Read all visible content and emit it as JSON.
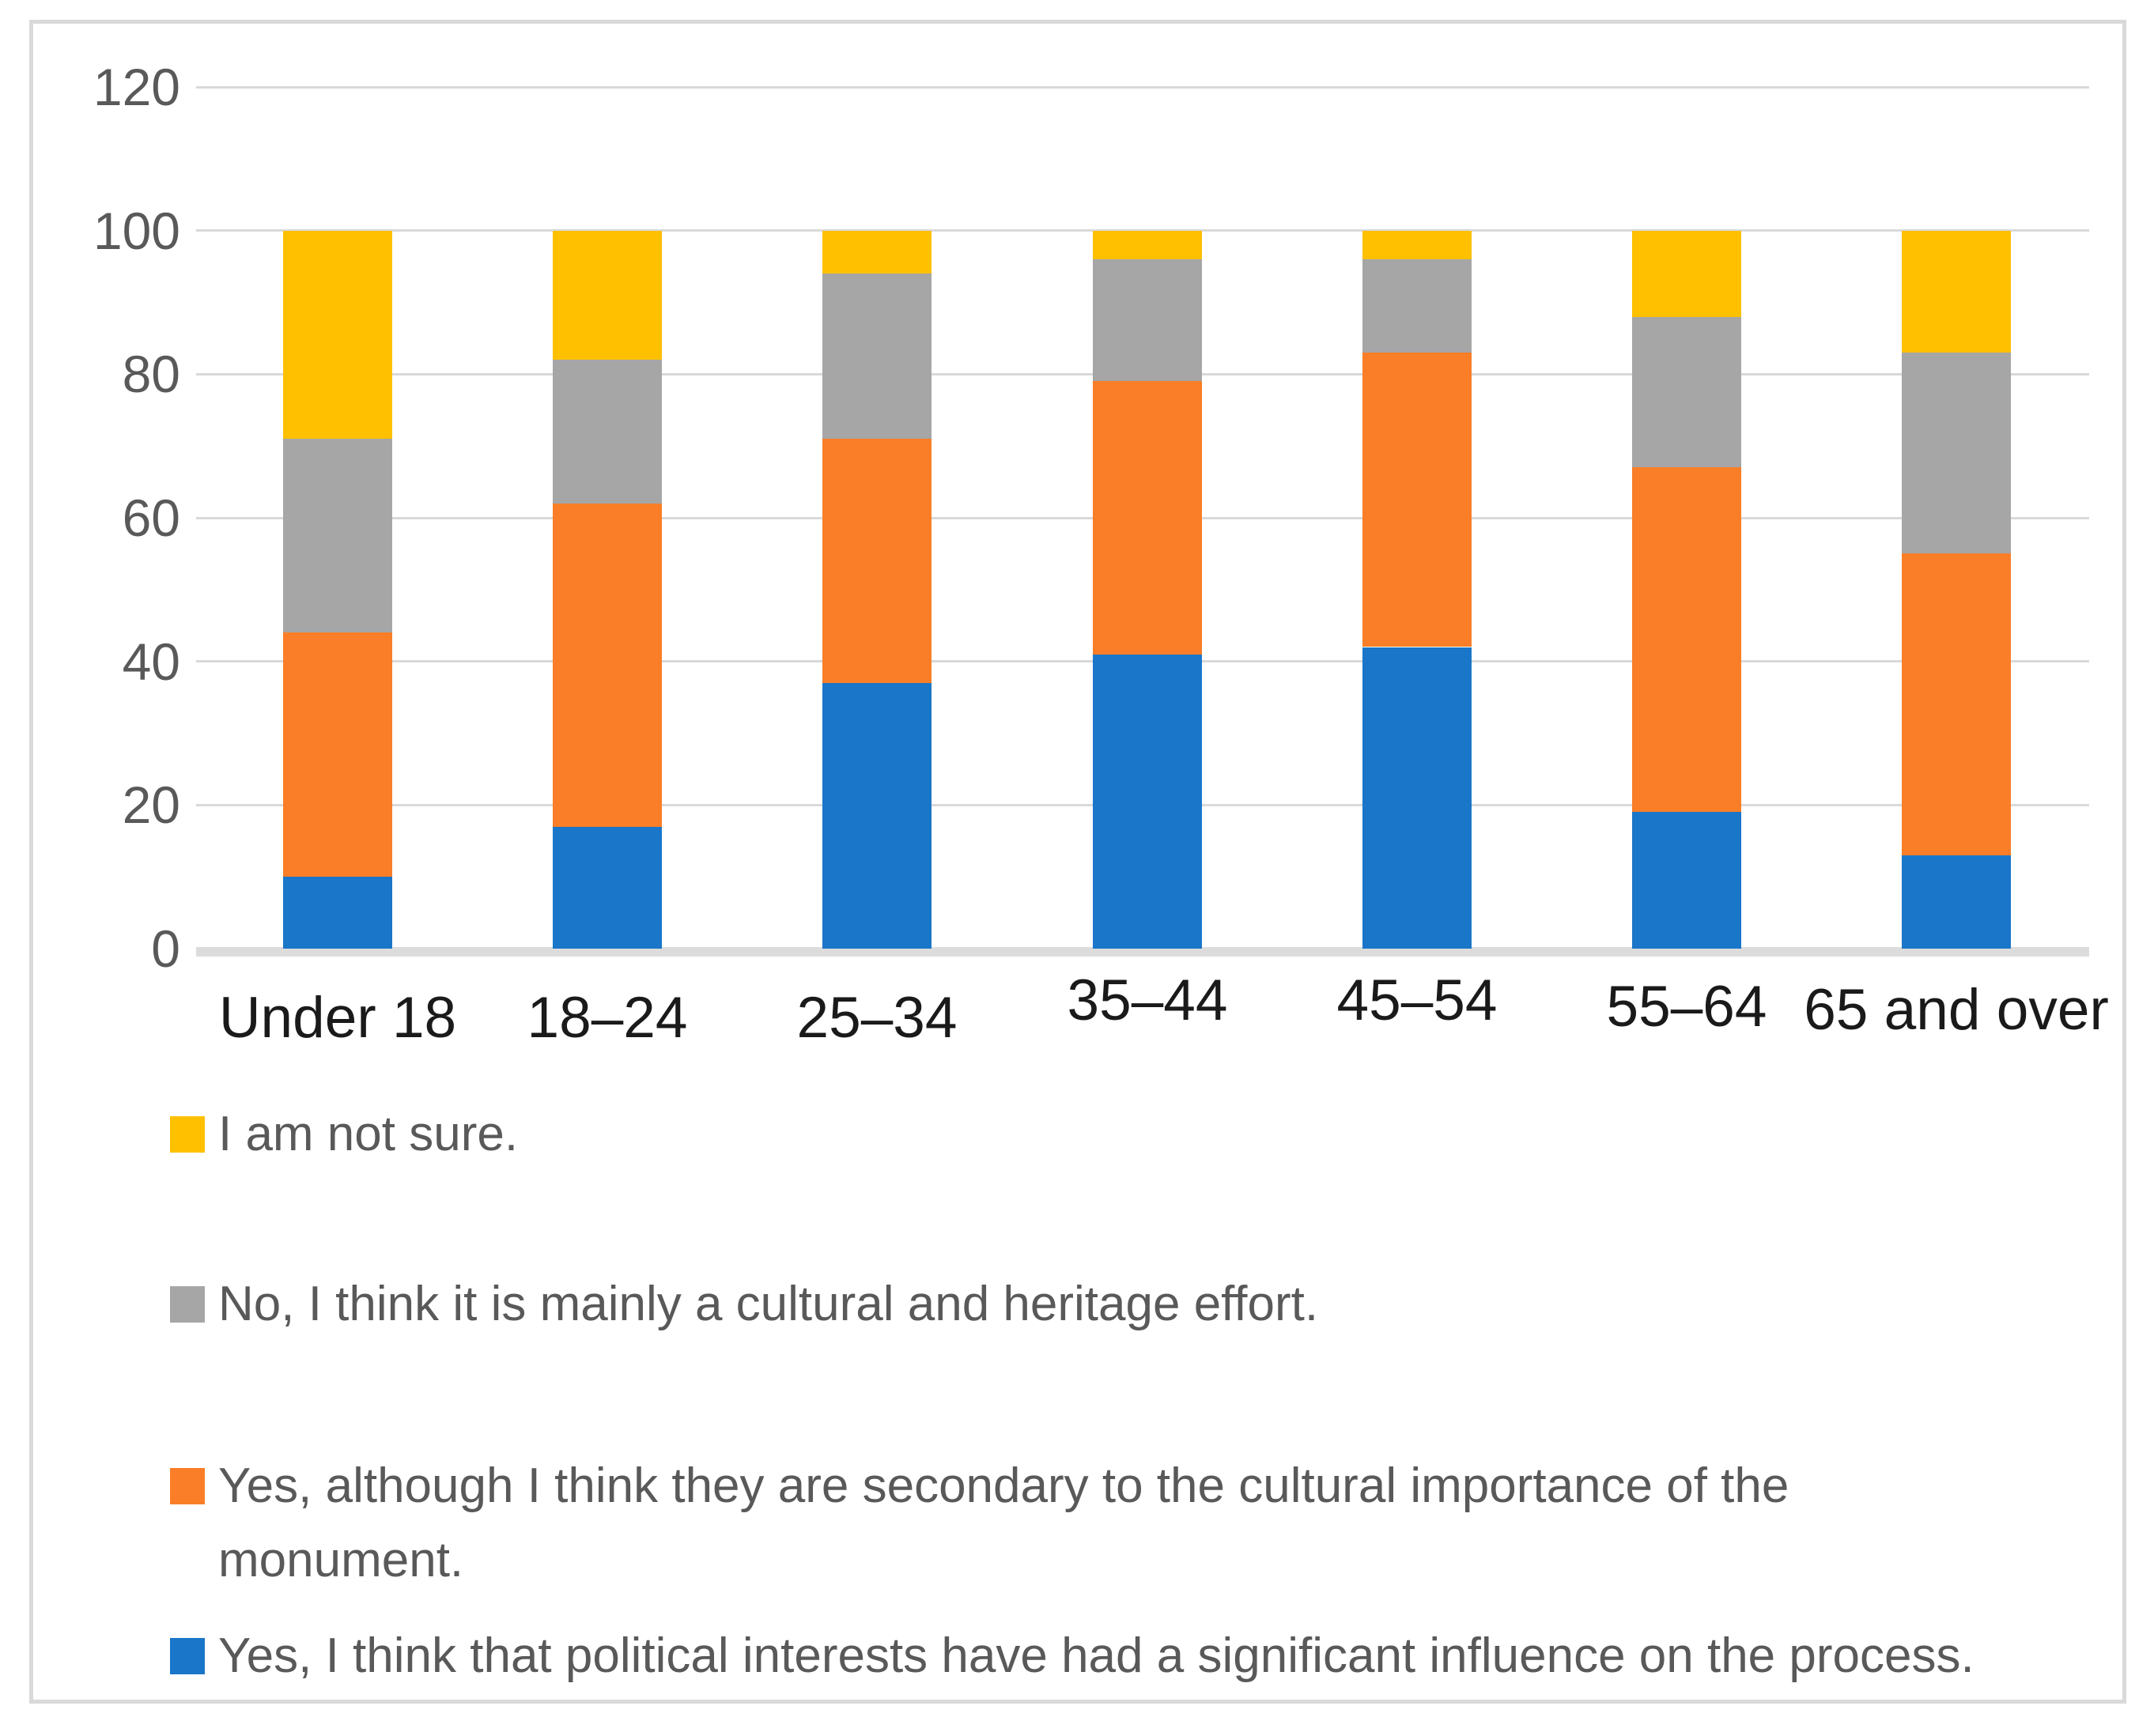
{
  "figure": {
    "background": "#ffffff",
    "border_color": "#d9d9d9",
    "gridline_color": "#d9d9d9"
  },
  "y_axis": {
    "ticks": [
      0,
      20,
      40,
      60,
      80,
      100,
      120
    ],
    "tick_color": "#595959"
  },
  "x_axis": {
    "label_color": "#1a1a1a"
  },
  "chart_data": {
    "type": "bar",
    "stacked": true,
    "orientation": "vertical",
    "title": "",
    "xlabel": "",
    "ylabel": "",
    "ylim": [
      0,
      120
    ],
    "yticks": [
      0,
      20,
      40,
      60,
      80,
      100,
      120
    ],
    "grid": true,
    "legend_position": "bottom",
    "categories": [
      "Under 18",
      "18–24",
      "25–34",
      "35–44",
      "45–54",
      "55–64",
      "65 and over"
    ],
    "series": [
      {
        "name": "Yes, I think that political interests have had a significant influence on the process.",
        "color": "#1a76c8",
        "values": [
          10,
          17,
          37,
          41,
          42,
          19,
          13
        ]
      },
      {
        "name": "Yes, although I think they are secondary to the cultural importance of the monument.",
        "color": "#f97e27",
        "values": [
          34,
          45,
          34,
          38,
          41,
          48,
          42
        ]
      },
      {
        "name": "No, I think it is mainly a cultural and heritage effort.",
        "color": "#a6a6a6",
        "values": [
          27,
          20,
          23,
          17,
          13,
          21,
          28
        ]
      },
      {
        "name": "I am not sure.",
        "color": "#ffc000",
        "values": [
          29,
          18,
          6,
          4,
          4,
          12,
          17
        ]
      }
    ]
  },
  "legend": {
    "text_color": "#595959",
    "items": [
      {
        "color": "#ffc000",
        "label_lines": [
          "I am not sure."
        ]
      },
      {
        "color": "#a6a6a6",
        "label_lines": [
          "No, I think it is mainly a cultural and heritage effort."
        ]
      },
      {
        "color": "#f97e27",
        "label_lines": [
          "Yes, although I think they are secondary to the cultural importance of the",
          "monument."
        ]
      },
      {
        "color": "#1a76c8",
        "label_lines": [
          "Yes, I think that political interests have had a significant influence on the process."
        ]
      }
    ]
  }
}
